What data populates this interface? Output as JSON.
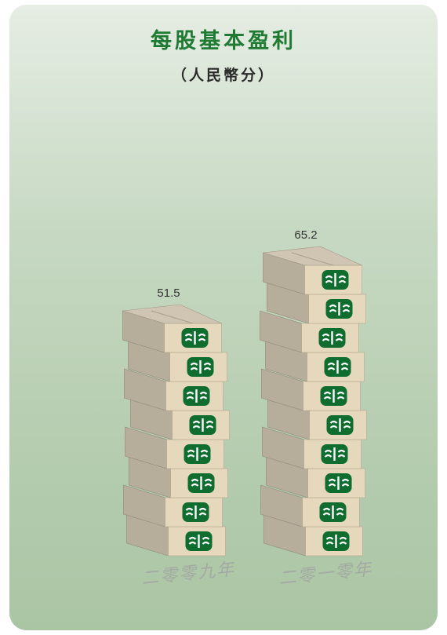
{
  "chart_data": {
    "type": "bar",
    "title": "每股基本盈利",
    "subtitle": "（人民幣分）",
    "categories": [
      "二零零九年",
      "二零一零年"
    ],
    "values": [
      51.5,
      65.2
    ],
    "value_labels": [
      "51.5",
      "65.2"
    ],
    "box_counts": [
      8,
      10
    ],
    "ylim": [
      0,
      70
    ],
    "grid": false,
    "legend": "none"
  },
  "colors": {
    "title": "#1f7a34",
    "box_front": "#e6d8bc",
    "box_side": "#b6ad9a",
    "box_top": "#cfc5b2",
    "logo": "#0f6d2f"
  },
  "icons": {
    "box_logo": "company-logo-icon"
  }
}
